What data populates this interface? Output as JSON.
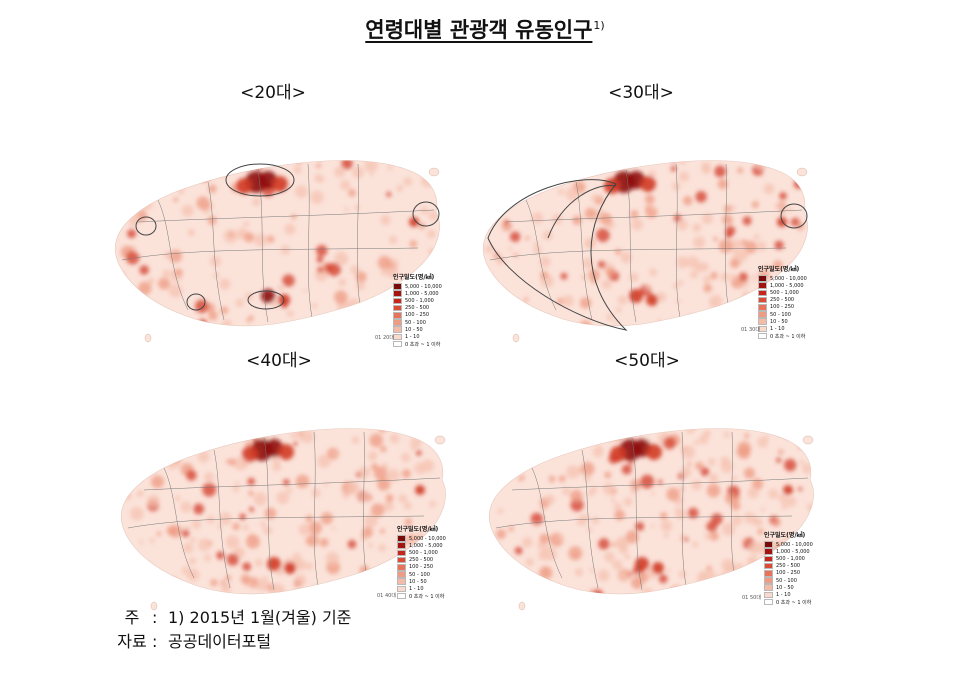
{
  "title": "연령대별 관광객 유동인구",
  "title_note": "1)",
  "legend": {
    "title": "인구밀도(명/㎢)",
    "items": [
      {
        "label": "5,000 - 10,000",
        "color": "#7a0a0a"
      },
      {
        "label": "1,000 - 5,000",
        "color": "#a3140f"
      },
      {
        "label": "500 - 1,000",
        "color": "#c7271b"
      },
      {
        "label": "250 - 500",
        "color": "#dc4b34"
      },
      {
        "label": "100 - 250",
        "color": "#e8735a"
      },
      {
        "label": "50 - 100",
        "color": "#f09b84"
      },
      {
        "label": "10 - 50",
        "color": "#f5bba9"
      },
      {
        "label": "1 - 10",
        "color": "#fadacd"
      },
      {
        "label": "0 초과 ~ 1 이하",
        "color": "#ffffff"
      }
    ]
  },
  "panels": [
    {
      "id": "20",
      "label": "<20대>",
      "code": "01 20대"
    },
    {
      "id": "30",
      "label": "<30대>",
      "code": "01 30대"
    },
    {
      "id": "40",
      "label": "<40대>",
      "code": "01 40대"
    },
    {
      "id": "50",
      "label": "<50대>",
      "code": "01 50대"
    }
  ],
  "notes": {
    "note_key": "주",
    "note_text": "1) 2015년 1월(겨울) 기준",
    "source_key": "자료",
    "source_text": "공공데이터포털"
  },
  "colors": {
    "land": "#fbe3da",
    "hotspot_dark": "#8e0e0c",
    "hotspot_mid": "#d23a26",
    "hotspot_light": "#ee9a82",
    "boundary": "#777777"
  }
}
